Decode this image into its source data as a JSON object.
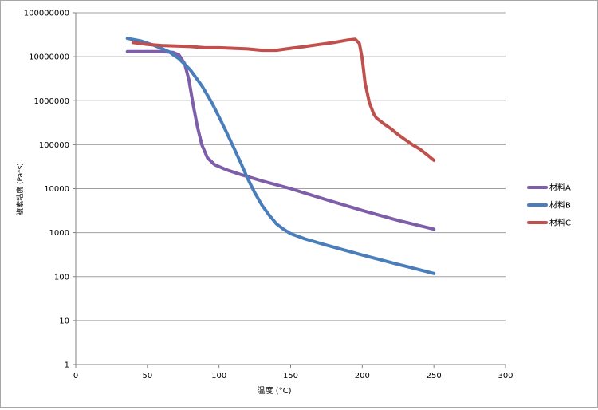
{
  "chart_data": {
    "type": "line",
    "title": "",
    "xlabel": "温度 (°C)",
    "ylabel": "複素粘度 (Pa*s)",
    "xlim": [
      0,
      300
    ],
    "ylim": [
      1,
      100000000
    ],
    "yscale": "log",
    "grid": "horizontal",
    "legend_position": "right",
    "x_ticks": [
      "0",
      "50",
      "100",
      "150",
      "200",
      "250",
      "300"
    ],
    "y_ticks": [
      "1",
      "10",
      "100",
      "1000",
      "10000",
      "100000",
      "1000000",
      "10000000",
      "100000000"
    ],
    "series": [
      {
        "name": "材料A",
        "color": "#7e5ea8",
        "x": [
          36,
          50,
          60,
          68,
          72,
          76,
          79,
          82,
          85,
          88,
          92,
          97,
          105,
          115,
          130,
          150,
          175,
          200,
          225,
          250
        ],
        "y": [
          13000000,
          13000000,
          13000000,
          12500000,
          11000000,
          7000000,
          3000000,
          800000,
          250000,
          100000,
          50000,
          35000,
          27000,
          21000,
          15000,
          10000,
          5600,
          3200,
          1900,
          1200
        ]
      },
      {
        "name": "材料B",
        "color": "#4a7ebb",
        "x": [
          36,
          45,
          55,
          65,
          72,
          80,
          88,
          95,
          100,
          105,
          110,
          115,
          120,
          125,
          130,
          135,
          140,
          145,
          150,
          160,
          175,
          200,
          225,
          250
        ],
        "y": [
          26000000,
          23000000,
          18000000,
          13000000,
          9000000,
          5000000,
          2200000,
          900000,
          430000,
          200000,
          90000,
          40000,
          17000,
          8000,
          4200,
          2500,
          1600,
          1200,
          950,
          720,
          520,
          310,
          190,
          118
        ]
      },
      {
        "name": "材料C",
        "color": "#c0504d",
        "x": [
          40,
          50,
          60,
          70,
          80,
          90,
          100,
          110,
          120,
          130,
          140,
          150,
          160,
          170,
          180,
          190,
          195,
          198,
          200,
          202,
          205,
          208,
          210,
          215,
          220,
          225,
          230,
          235,
          240,
          245,
          250
        ],
        "y": [
          21000000,
          19000000,
          18000000,
          17500000,
          17000000,
          16000000,
          16000000,
          15500000,
          15000000,
          14000000,
          14000000,
          15500000,
          17000000,
          19000000,
          21000000,
          24000000,
          25000000,
          20000000,
          9000000,
          2500000,
          900000,
          500000,
          400000,
          300000,
          230000,
          170000,
          130000,
          100000,
          80000,
          60000,
          44000
        ]
      }
    ]
  }
}
